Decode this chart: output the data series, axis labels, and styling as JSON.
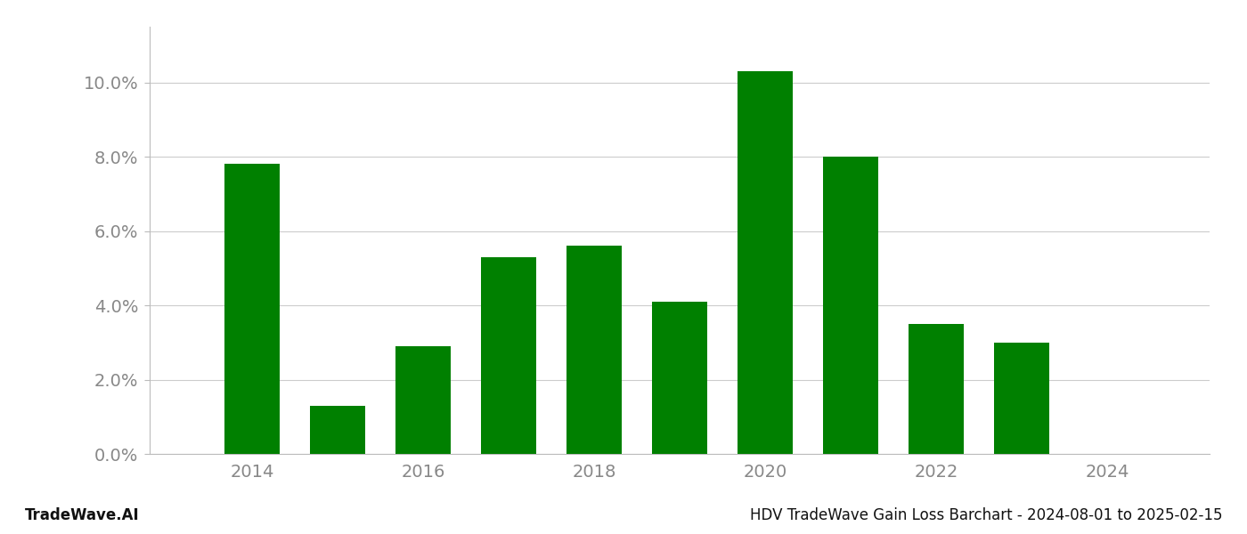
{
  "years": [
    2014,
    2015,
    2016,
    2017,
    2018,
    2019,
    2020,
    2021,
    2022,
    2023
  ],
  "values": [
    0.078,
    0.013,
    0.029,
    0.053,
    0.056,
    0.041,
    0.103,
    0.08,
    0.035,
    0.03
  ],
  "bar_color": "#008000",
  "ylim": [
    0,
    0.115
  ],
  "yticks": [
    0.0,
    0.02,
    0.04,
    0.06,
    0.08,
    0.1
  ],
  "xticks": [
    2014,
    2016,
    2018,
    2020,
    2022,
    2024
  ],
  "footer_left": "TradeWave.AI",
  "footer_right": "HDV TradeWave Gain Loss Barchart - 2024-08-01 to 2025-02-15",
  "background_color": "#ffffff",
  "grid_color": "#cccccc",
  "tick_label_color": "#888888",
  "footer_fontsize": 12,
  "tick_fontsize": 14,
  "bar_width": 0.65,
  "xlim_left": 2012.8,
  "xlim_right": 2025.2
}
